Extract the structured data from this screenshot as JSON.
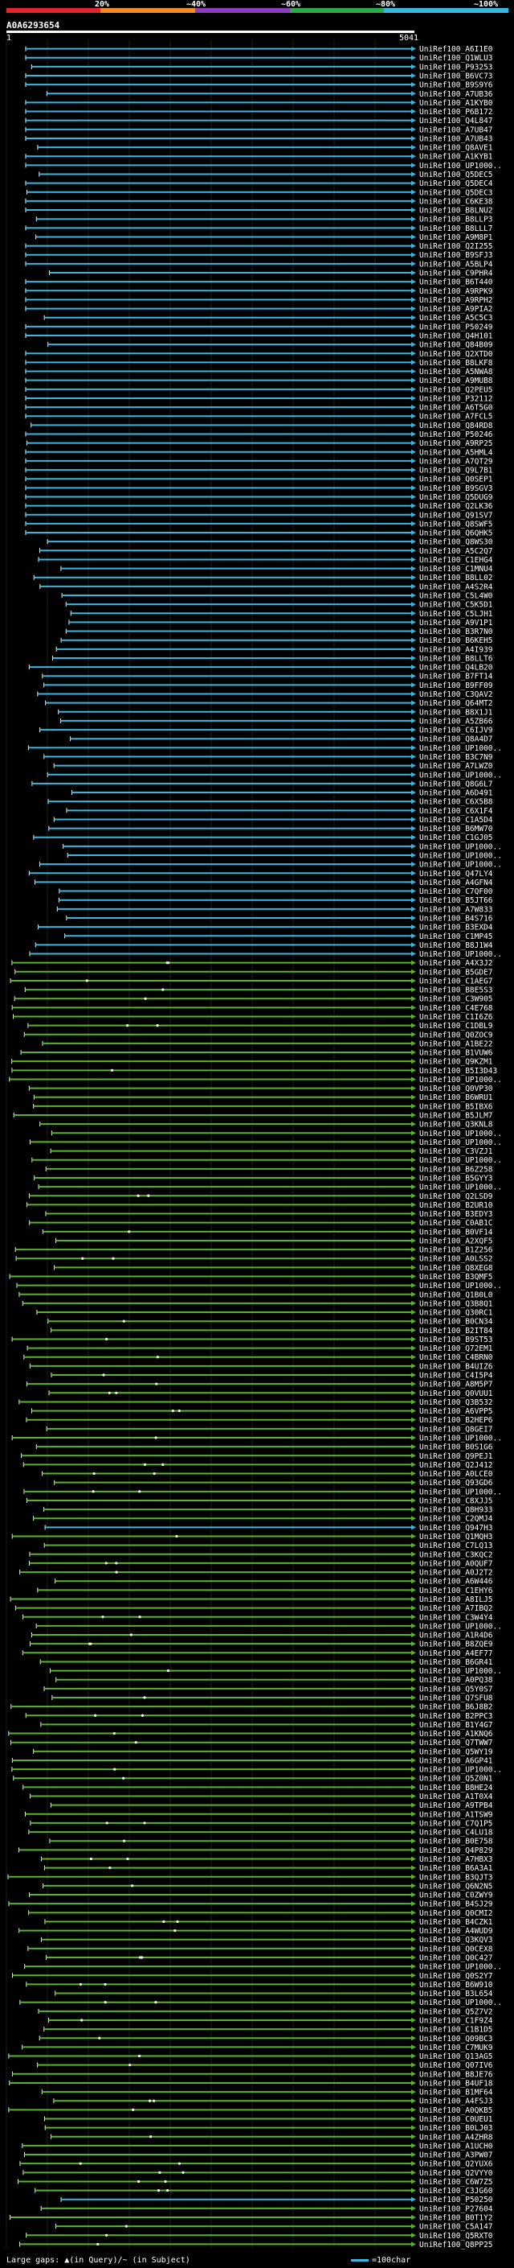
{
  "header": {
    "query_id": "A0A6293654",
    "query_start": "1",
    "query_end": "5041",
    "identity_scale": [
      {
        "label": "20%",
        "color": "#e0262b"
      },
      {
        "label": "~40%",
        "color": "#f28c28"
      },
      {
        "label": "~60%",
        "color": "#8e3dbd"
      },
      {
        "label": "~80%",
        "color": "#2fa84a"
      },
      {
        "label": "~100%",
        "color": "#3ab7e0"
      }
    ]
  },
  "colors": {
    "cyan": "#3ab7e0",
    "green": "#5ab32a",
    "gridline": "#333333",
    "marker": "#ffffff",
    "cap": "#ffffff"
  },
  "footer": {
    "gaps_text": "Large gaps: ▲(in Query)/~ (in Subject)",
    "legend_text": "=100char"
  },
  "hits": [
    {
      "label": "UniRef100_A6I1E0",
      "cyan": true
    },
    {
      "label": "UniRef100_Q1WLU3",
      "cyan": true
    },
    {
      "label": "UniRef100_P93253",
      "cyan": true
    },
    {
      "label": "UniRef100_B6VC73",
      "cyan": true
    },
    {
      "label": "UniRef100_B9S9Y6",
      "cyan": true
    },
    {
      "label": "UniRef100_A7UB36",
      "cyan": true
    },
    {
      "label": "UniRef100_A1KYB0",
      "cyan": true
    },
    {
      "label": "UniRef100_P6B172",
      "cyan": true
    },
    {
      "label": "UniRef100_Q4L847",
      "cyan": true
    },
    {
      "label": "UniRef100_A7UB47",
      "cyan": true
    },
    {
      "label": "UniRef100_A7UB43",
      "cyan": true
    },
    {
      "label": "UniRef100_Q8AVE1",
      "cyan": true
    },
    {
      "label": "UniRef100_A1KYB1",
      "cyan": true
    },
    {
      "label": "UniRef100_UP1000..",
      "cyan": true
    },
    {
      "label": "UniRef100_Q5DEC5",
      "cyan": true
    },
    {
      "label": "UniRef100_Q5DEC4",
      "cyan": true
    },
    {
      "label": "UniRef100_Q5DEC3",
      "cyan": true
    },
    {
      "label": "UniRef100_C6KE38",
      "cyan": true
    },
    {
      "label": "UniRef100_B8LNU2",
      "cyan": true
    },
    {
      "label": "UniRef100_B8LLP3",
      "cyan": true
    },
    {
      "label": "UniRef100_B8LLL7",
      "cyan": true
    },
    {
      "label": "UniRef100_A9M8P1",
      "cyan": true
    },
    {
      "label": "UniRef100_Q2I255",
      "cyan": true
    },
    {
      "label": "UniRef100_B9SFJ3",
      "cyan": true
    },
    {
      "label": "UniRef100_A5BLP4",
      "cyan": true
    },
    {
      "label": "UniRef100_C9PHR4",
      "cyan": true
    },
    {
      "label": "UniRef100_B6T440",
      "cyan": true
    },
    {
      "label": "UniRef100_A9RPK9",
      "cyan": true
    },
    {
      "label": "UniRef100_A9RPH2",
      "cyan": true
    },
    {
      "label": "UniRef100_A9PIA2",
      "cyan": true
    },
    {
      "label": "UniRef100_A5C5C3",
      "cyan": true
    },
    {
      "label": "UniRef100_P50249",
      "cyan": true
    },
    {
      "label": "UniRef100_Q4H101",
      "cyan": true
    },
    {
      "label": "UniRef100_Q84B09",
      "cyan": true
    },
    {
      "label": "UniRef100_Q2XTD0",
      "cyan": true
    },
    {
      "label": "UniRef100_B8LKF8",
      "cyan": true
    },
    {
      "label": "UniRef100_A5NWA8",
      "cyan": true
    },
    {
      "label": "UniRef100_A9MUB8",
      "cyan": true
    },
    {
      "label": "UniRef100_Q2PEU5",
      "cyan": true
    },
    {
      "label": "UniRef100_P32112",
      "cyan": true
    },
    {
      "label": "UniRef100_A6T5G0",
      "cyan": true
    },
    {
      "label": "UniRef100_A7FCL5",
      "cyan": true
    },
    {
      "label": "UniRef100_Q84RD8",
      "cyan": true
    },
    {
      "label": "UniRef100_P50246",
      "cyan": true
    },
    {
      "label": "UniRef100_A9RP25",
      "cyan": true
    },
    {
      "label": "UniRef100_A5HML4",
      "cyan": true
    },
    {
      "label": "UniRef100_A7QT29",
      "cyan": true
    },
    {
      "label": "UniRef100_Q9L7B1",
      "cyan": true
    },
    {
      "label": "UniRef100_Q0SEP1",
      "cyan": true
    },
    {
      "label": "UniRef100_B9SGV3",
      "cyan": true
    },
    {
      "label": "UniRef100_Q5DUG9",
      "cyan": true
    },
    {
      "label": "UniRef100_Q2LK36",
      "cyan": true
    },
    {
      "label": "UniRef100_Q91SV7",
      "cyan": true
    },
    {
      "label": "UniRef100_Q8SWF5",
      "cyan": true
    },
    {
      "label": "UniRef100_Q6QHK5",
      "cyan": true
    },
    {
      "label": "UniRef100_Q8WS30",
      "cyan": true
    },
    {
      "label": "UniRef100_A5C2Q7",
      "cyan": true
    },
    {
      "label": "UniRef100_C1EHG4",
      "cyan": true
    },
    {
      "label": "UniRef100_C1MNU4",
      "cyan": true
    },
    {
      "label": "UniRef100_B8LL02",
      "cyan": true
    },
    {
      "label": "UniRef100_A4S2R4",
      "cyan": true
    },
    {
      "label": "UniRef100_C5L4W0",
      "cyan": true
    },
    {
      "label": "UniRef100_C5K5D1",
      "cyan": true
    },
    {
      "label": "UniRef100_C5LJH1",
      "cyan": true
    },
    {
      "label": "UniRef100_A9V1P1",
      "cyan": true
    },
    {
      "label": "UniRef100_B3R7N0",
      "cyan": true
    },
    {
      "label": "UniRef100_B6KEH5",
      "cyan": true
    },
    {
      "label": "UniRef100_A4I939",
      "cyan": true
    },
    {
      "label": "UniRef100_B8LLT6",
      "cyan": true
    },
    {
      "label": "UniRef100_Q4LB20",
      "cyan": true
    },
    {
      "label": "UniRef100_B7FT14",
      "cyan": true
    },
    {
      "label": "UniRef100_B9FF09",
      "cyan": true
    },
    {
      "label": "UniRef100_C3QAV2",
      "cyan": true
    },
    {
      "label": "UniRef100_Q64MT2",
      "cyan": true
    },
    {
      "label": "UniRef100_B8X1J1",
      "cyan": true
    },
    {
      "label": "UniRef100_A5ZB66",
      "cyan": true
    },
    {
      "label": "UniRef100_C6IJV9",
      "cyan": true
    },
    {
      "label": "UniRef100_Q8A4D7",
      "cyan": true
    },
    {
      "label": "UniRef100_UP1000..",
      "cyan": true
    },
    {
      "label": "UniRef100_B3C7N9",
      "cyan": true
    },
    {
      "label": "UniRef100_A7LWZ0",
      "cyan": true
    },
    {
      "label": "UniRef100_UP1000..",
      "cyan": true
    },
    {
      "label": "UniRef100_Q8G6L7",
      "cyan": true
    },
    {
      "label": "UniRef100_A6D491",
      "cyan": true
    },
    {
      "label": "UniRef100_C6X5B8",
      "cyan": true
    },
    {
      "label": "UniRef100_C6X1F4",
      "cyan": true
    },
    {
      "label": "UniRef100_C1A5D4",
      "cyan": true
    },
    {
      "label": "UniRef100_B6MW70",
      "cyan": true
    },
    {
      "label": "UniRef100_C1GJ05",
      "cyan": true
    },
    {
      "label": "UniRef100_UP1000..",
      "cyan": true
    },
    {
      "label": "UniRef100_UP1000..",
      "cyan": true
    },
    {
      "label": "UniRef100_UP1000..",
      "cyan": true
    },
    {
      "label": "UniRef100_Q47LY4",
      "cyan": true
    },
    {
      "label": "UniRef100_A4GFN4",
      "cyan": true
    },
    {
      "label": "UniRef100_C7QF00",
      "cyan": true
    },
    {
      "label": "UniRef100_B5JT66",
      "cyan": true
    },
    {
      "label": "UniRef100_A7W833",
      "cyan": true
    },
    {
      "label": "UniRef100_B4S716",
      "cyan": true
    },
    {
      "label": "UniRef100_B3EXD4",
      "cyan": true
    },
    {
      "label": "UniRef100_C1MP45",
      "cyan": true
    },
    {
      "label": "UniRef100_B8J1W4",
      "cyan": true
    },
    {
      "label": "UniRef100_UP1000..",
      "cyan": true
    },
    {
      "label": "UniRef100_A4X3J2",
      "cyan": false
    },
    {
      "label": "UniRef100_B5GDE7",
      "cyan": false
    },
    {
      "label": "UniRef100_C1AEG7",
      "cyan": false
    },
    {
      "label": "UniRef100_B8E5S3",
      "cyan": false
    },
    {
      "label": "UniRef100_C3W905",
      "cyan": false
    },
    {
      "label": "UniRef100_C4E768",
      "cyan": false
    },
    {
      "label": "UniRef100_C1I6Z6",
      "cyan": false
    },
    {
      "label": "UniRef100_C1DBL9",
      "cyan": false
    },
    {
      "label": "UniRef100_Q0ZOC9",
      "cyan": false
    },
    {
      "label": "UniRef100_A1BE22",
      "cyan": false
    },
    {
      "label": "UniRef100_B1VUW6",
      "cyan": false
    },
    {
      "label": "UniRef100_Q9KZM1",
      "cyan": false
    },
    {
      "label": "UniRef100_B5I3D43",
      "cyan": false
    },
    {
      "label": "UniRef100_UP1000..",
      "cyan": false
    },
    {
      "label": "UniRef100_Q0VP30",
      "cyan": false
    },
    {
      "label": "UniRef100_B6WRU1",
      "cyan": false
    },
    {
      "label": "UniRef100_B5IBX6",
      "cyan": false
    },
    {
      "label": "UniRef100_B5JLM7",
      "cyan": false
    },
    {
      "label": "UniRef100_Q3KNL8",
      "cyan": false
    },
    {
      "label": "UniRef100_UP1000..",
      "cyan": false
    },
    {
      "label": "UniRef100_UP1000..",
      "cyan": false
    },
    {
      "label": "UniRef100_C3VZJ1",
      "cyan": false
    },
    {
      "label": "UniRef100_UP1000..",
      "cyan": false
    },
    {
      "label": "UniRef100_B6Z258",
      "cyan": false
    },
    {
      "label": "UniRef100_B5GYY3",
      "cyan": false
    },
    {
      "label": "UniRef100_UP1000..",
      "cyan": false
    },
    {
      "label": "UniRef100_Q2LSD9",
      "cyan": false
    },
    {
      "label": "UniRef100_B2UR10",
      "cyan": false
    },
    {
      "label": "UniRef100_B3EDY3",
      "cyan": false
    },
    {
      "label": "UniRef100_C0AB1C",
      "cyan": false
    },
    {
      "label": "UniRef100_B0VF14",
      "cyan": false
    },
    {
      "label": "UniRef100_A2XQF5",
      "cyan": false
    },
    {
      "label": "UniRef100_B1Z256",
      "cyan": false
    },
    {
      "label": "UniRef100_A0LSS2",
      "cyan": false
    },
    {
      "label": "UniRef100_Q8XEG8",
      "cyan": false
    },
    {
      "label": "UniRef100_B3QMF5",
      "cyan": false
    },
    {
      "label": "UniRef100_UP1000..",
      "cyan": false
    },
    {
      "label": "UniRef100_Q1B0L0",
      "cyan": false
    },
    {
      "label": "UniRef100_Q3B8Q1",
      "cyan": false
    },
    {
      "label": "UniRef100_Q30RC1",
      "cyan": false
    },
    {
      "label": "UniRef100_B0CN34",
      "cyan": false
    },
    {
      "label": "UniRef100_B2IT84",
      "cyan": false
    },
    {
      "label": "UniRef100_B9ST53",
      "cyan": false
    },
    {
      "label": "UniRef100_Q72EM1",
      "cyan": false
    },
    {
      "label": "UniRef100_C4BRN0",
      "cyan": false
    },
    {
      "label": "UniRef100_B4UIZ6",
      "cyan": false
    },
    {
      "label": "UniRef100_C4I5P4",
      "cyan": false
    },
    {
      "label": "UniRef100_A8M5P7",
      "cyan": false
    },
    {
      "label": "UniRef100_Q0VUU1",
      "cyan": false
    },
    {
      "label": "UniRef100_Q3B532",
      "cyan": false
    },
    {
      "label": "UniRef100_A6VPP5",
      "cyan": false
    },
    {
      "label": "UniRef100_B2HEP6",
      "cyan": false
    },
    {
      "label": "UniRef100_Q8GEI7",
      "cyan": false
    },
    {
      "label": "UniRef100_UP1000..",
      "cyan": false
    },
    {
      "label": "UniRef100_B0S1G6",
      "cyan": false
    },
    {
      "label": "UniRef100_Q9PEJ1",
      "cyan": false
    },
    {
      "label": "UniRef100_Q2J412",
      "cyan": false
    },
    {
      "label": "UniRef100_A0LCE0",
      "cyan": false
    },
    {
      "label": "UniRef100_Q93GD6",
      "cyan": false
    },
    {
      "label": "UniRef100_UP1000..",
      "cyan": false
    },
    {
      "label": "UniRef100_C8XJJ5",
      "cyan": false
    },
    {
      "label": "UniRef100_Q8H933",
      "cyan": false
    },
    {
      "label": "UniRef100_C2QMJ4",
      "cyan": false
    },
    {
      "label": "UniRef100_Q947H3",
      "cyan": true
    },
    {
      "label": "UniRef100_Q1MQH3",
      "cyan": false
    },
    {
      "label": "UniRef100_C7LQ13",
      "cyan": false
    },
    {
      "label": "UniRef100_C3KQC2",
      "cyan": false
    },
    {
      "label": "UniRef100_A0QUF7",
      "cyan": false
    },
    {
      "label": "UniRef100_A0J2T2",
      "cyan": false
    },
    {
      "label": "UniRef100_A6W446",
      "cyan": false
    },
    {
      "label": "UniRef100_C1EHY6",
      "cyan": false
    },
    {
      "label": "UniRef100_A8ILJ5",
      "cyan": false
    },
    {
      "label": "UniRef100_A7IBQ2",
      "cyan": false
    },
    {
      "label": "UniRef100_C3W4Y4",
      "cyan": false
    },
    {
      "label": "UniRef100_UP1000..",
      "cyan": false
    },
    {
      "label": "UniRef100_A1R4D6",
      "cyan": false
    },
    {
      "label": "UniRef100_B8ZQE9",
      "cyan": false
    },
    {
      "label": "UniRef100_A4EF77",
      "cyan": false
    },
    {
      "label": "UniRef100_B6GR41",
      "cyan": false
    },
    {
      "label": "UniRef100_UP1000..",
      "cyan": false
    },
    {
      "label": "UniRef100_A0PQ38",
      "cyan": false
    },
    {
      "label": "UniRef100_Q5Y0S7",
      "cyan": false
    },
    {
      "label": "UniRef100_Q7SFU8",
      "cyan": false
    },
    {
      "label": "UniRef100_B6J8B2",
      "cyan": false
    },
    {
      "label": "UniRef100_B2PPC3",
      "cyan": false
    },
    {
      "label": "UniRef100_B1Y4G7",
      "cyan": false
    },
    {
      "label": "UniRef100_A1KNQ6",
      "cyan": false
    },
    {
      "label": "UniRef100_Q7TWW7",
      "cyan": false
    },
    {
      "label": "UniRef100_Q5WY19",
      "cyan": false
    },
    {
      "label": "UniRef100_A6GP41",
      "cyan": false
    },
    {
      "label": "UniRef100_UP1000..",
      "cyan": false
    },
    {
      "label": "UniRef100_Q5Z0N1",
      "cyan": false
    },
    {
      "label": "UniRef100_B8HE24",
      "cyan": false
    },
    {
      "label": "UniRef100_A1T0X4",
      "cyan": false
    },
    {
      "label": "UniRef100_A9TPB4",
      "cyan": false
    },
    {
      "label": "UniRef100_A1TSW9",
      "cyan": false
    },
    {
      "label": "UniRef100_C7Q1P5",
      "cyan": false
    },
    {
      "label": "UniRef100_C4LU18",
      "cyan": false
    },
    {
      "label": "UniRef100_B0E758",
      "cyan": false
    },
    {
      "label": "UniRef100_Q4P829",
      "cyan": false
    },
    {
      "label": "UniRef100_A7HBX3",
      "cyan": false
    },
    {
      "label": "UniRef100_B6A3A1",
      "cyan": false
    },
    {
      "label": "UniRef100_B3QJT3",
      "cyan": false
    },
    {
      "label": "UniRef100_Q6N2N5",
      "cyan": false
    },
    {
      "label": "UniRef100_C0ZWY9",
      "cyan": false
    },
    {
      "label": "UniRef100_B4SJ29",
      "cyan": false
    },
    {
      "label": "UniRef100_Q0CMI2",
      "cyan": false
    },
    {
      "label": "UniRef100_B4CZK1",
      "cyan": false
    },
    {
      "label": "UniRef100_A4WUD9",
      "cyan": false
    },
    {
      "label": "UniRef100_Q3KQV3",
      "cyan": false
    },
    {
      "label": "UniRef100_Q0CEX8",
      "cyan": false
    },
    {
      "label": "UniRef100_Q0C427",
      "cyan": false
    },
    {
      "label": "UniRef100_UP1000..",
      "cyan": false
    },
    {
      "label": "UniRef100_Q0S2Y7",
      "cyan": false
    },
    {
      "label": "UniRef100_B6W910",
      "cyan": false
    },
    {
      "label": "UniRef100_B3L654",
      "cyan": false
    },
    {
      "label": "UniRef100_UP1000..",
      "cyan": false
    },
    {
      "label": "UniRef100_Q5Z7V2",
      "cyan": false
    },
    {
      "label": "UniRef100_C1F9Z4",
      "cyan": false
    },
    {
      "label": "UniRef100_C1B1D5",
      "cyan": false
    },
    {
      "label": "UniRef100_Q09BC3",
      "cyan": false
    },
    {
      "label": "UniRef100_C7MUK9",
      "cyan": false
    },
    {
      "label": "UniRef100_Q13AG5",
      "cyan": false
    },
    {
      "label": "UniRef100_Q07IV6",
      "cyan": false
    },
    {
      "label": "UniRef100_B8JE76",
      "cyan": false
    },
    {
      "label": "UniRef100_B4UF18",
      "cyan": false
    },
    {
      "label": "UniRef100_B1MF64",
      "cyan": false
    },
    {
      "label": "UniRef100_A4FSJ3",
      "cyan": false
    },
    {
      "label": "UniRef100_A0QKB5",
      "cyan": false
    },
    {
      "label": "UniRef100_C0UEU1",
      "cyan": false
    },
    {
      "label": "UniRef100_B0LJ03",
      "cyan": false
    },
    {
      "label": "UniRef100_A4ZHR8",
      "cyan": false
    },
    {
      "label": "UniRef100_A1UCH0",
      "cyan": false
    },
    {
      "label": "UniRef100_A3PW07",
      "cyan": false
    },
    {
      "label": "UniRef100_Q2YUX6",
      "cyan": false
    },
    {
      "label": "UniRef100_Q2VYY0",
      "cyan": false
    },
    {
      "label": "UniRef100_C6W7Z5",
      "cyan": false
    },
    {
      "label": "UniRef100_C3JG60",
      "cyan": false
    },
    {
      "label": "UniRef100_P50250",
      "cyan": true
    },
    {
      "label": "UniRef100_P27604",
      "cyan": false
    },
    {
      "label": "UniRef100_B0T1Y2",
      "cyan": false
    },
    {
      "label": "UniRef100_C5A147",
      "cyan": false
    },
    {
      "label": "UniRef100_Q5RXT0",
      "cyan": false
    },
    {
      "label": "UniRef100_Q8PP25",
      "cyan": false
    }
  ]
}
